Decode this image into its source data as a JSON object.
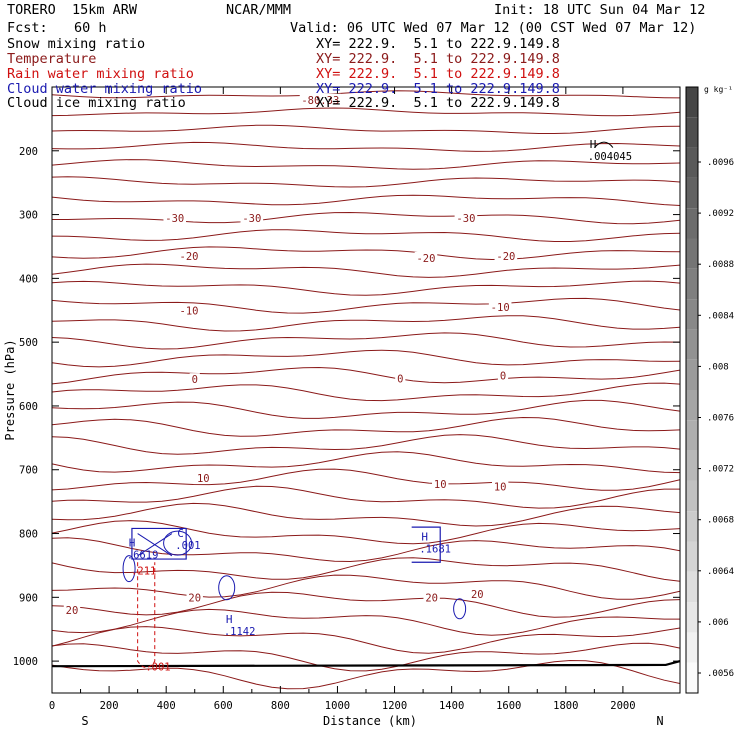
{
  "header": {
    "model": "TORERO  15km ARW",
    "org": "NCAR/MMM",
    "init": "Init: 18 UTC Sun 04 Mar 12",
    "fcst_label": "Fcst:",
    "fcst_value": "60 h",
    "valid": "Valid: 06 UTC Wed 07 Mar 12 (00 CST Wed 07 Mar 12)"
  },
  "legend": [
    {
      "label": "Snow mixing ratio",
      "xy": "XY= 222.9.  5.1 to 222.9.149.8",
      "color": "#000000"
    },
    {
      "label": "Temperature",
      "xy": "XY= 222.9.  5.1 to 222.9.149.8",
      "color": "#8b1a1a"
    },
    {
      "label": "Rain water mixing ratio",
      "xy": "XY= 222.9.  5.1 to 222.9.149.8",
      "color": "#d01010"
    },
    {
      "label": "Cloud water mixing ratio",
      "xy": "XY= 222.9.  5.1 to 222.9.149.8",
      "color": "#1a1ab0"
    },
    {
      "label": "Cloud ice mixing ratio",
      "xy": "XY= 222.9.  5.1 to 222.9.149.8",
      "color": "#000000"
    }
  ],
  "chart_data": {
    "type": "contour",
    "xlabel": "Distance (km)",
    "ylabel": "Pressure (hPa)",
    "xlim": [
      0,
      2200
    ],
    "ylim": [
      1050,
      100
    ],
    "x_ticks": [
      "0",
      "200",
      "400",
      "600",
      "800",
      "1000",
      "1200",
      "1400",
      "1600",
      "1800",
      "2000"
    ],
    "y_ticks": [
      "200",
      "300",
      "400",
      "500",
      "600",
      "700",
      "800",
      "900",
      "1000"
    ],
    "x_endpoints": {
      "left": "S",
      "right": "N"
    },
    "colorbar": {
      "unit": "g kg⁻¹",
      "ticks": [
        ".0096",
        ".0092",
        ".0088",
        ".0084",
        ".008",
        ".0076",
        ".0072",
        ".0068",
        ".0064",
        ".006",
        ".0056"
      ]
    },
    "temperature_labels": [
      {
        "text": "-80.33",
        "x": 940,
        "p": 120
      },
      {
        "text": "-30",
        "x": 430,
        "p": 305
      },
      {
        "text": "-30",
        "x": 700,
        "p": 305
      },
      {
        "text": "-30",
        "x": 1450,
        "p": 305
      },
      {
        "text": "-20",
        "x": 480,
        "p": 365
      },
      {
        "text": "-20",
        "x": 1310,
        "p": 368
      },
      {
        "text": "-20",
        "x": 1590,
        "p": 365
      },
      {
        "text": "-10",
        "x": 480,
        "p": 450
      },
      {
        "text": "-10",
        "x": 1570,
        "p": 445
      },
      {
        "text": "0",
        "x": 500,
        "p": 558
      },
      {
        "text": "0",
        "x": 1220,
        "p": 557
      },
      {
        "text": "0",
        "x": 1580,
        "p": 552
      },
      {
        "text": "10",
        "x": 530,
        "p": 713
      },
      {
        "text": "10",
        "x": 1360,
        "p": 722
      },
      {
        "text": "10",
        "x": 1570,
        "p": 726
      },
      {
        "text": "20",
        "x": 70,
        "p": 920
      },
      {
        "text": "20",
        "x": 500,
        "p": 900
      },
      {
        "text": "20",
        "x": 1330,
        "p": 900
      },
      {
        "text": "20",
        "x": 1490,
        "p": 895
      }
    ],
    "extrema": [
      {
        "type": "H",
        "value": ".004045",
        "x": 1905,
        "p": 205,
        "color": "#000000"
      },
      {
        "type": "H",
        "value": ".6619",
        "x": 290,
        "p": 830,
        "color": "#1a1ab0"
      },
      {
        "type": "C",
        "value": ".001",
        "x": 460,
        "p": 815,
        "color": "#1a1ab0"
      },
      {
        "type": "H",
        "value": ".1681",
        "x": 1315,
        "p": 820,
        "color": "#1a1ab0"
      },
      {
        "type": "H",
        "value": ".1142",
        "x": 630,
        "p": 950,
        "color": "#1a1ab0"
      },
      {
        "type": "",
        "value": ".211",
        "x": 305,
        "p": 855,
        "color": "#d01010"
      },
      {
        "type": "",
        "value": ".001",
        "x": 355,
        "p": 1005,
        "color": "#d01010"
      }
    ]
  }
}
